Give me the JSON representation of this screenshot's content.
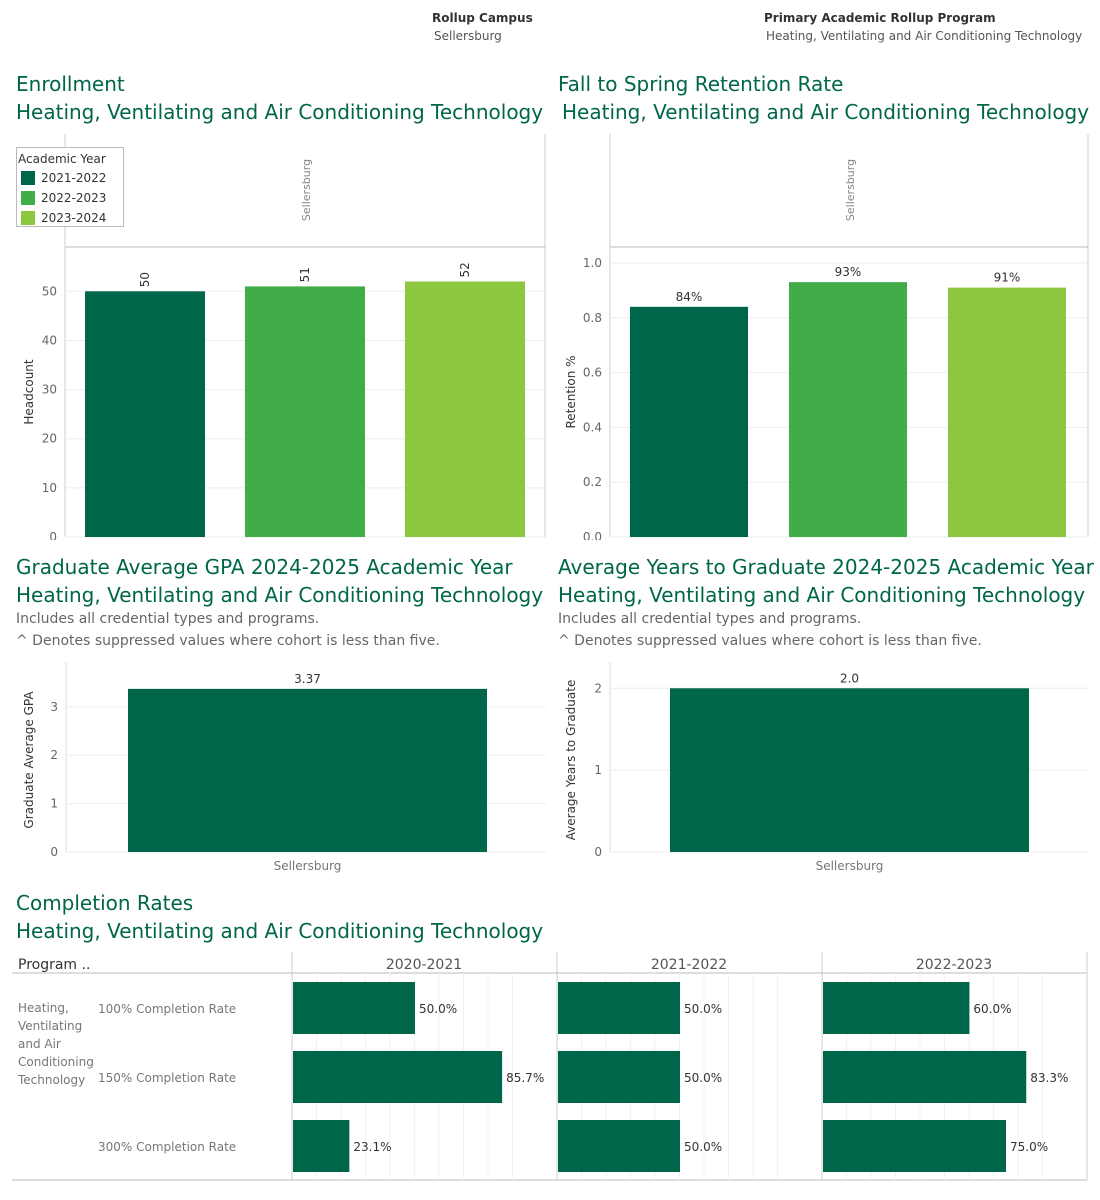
{
  "filters": {
    "campus_label": "Rollup Campus",
    "campus_value": "Sellersburg",
    "program_label": "Primary Academic Rollup Program",
    "program_value": "Heating, Ventilating and Air Conditioning Technology"
  },
  "colors": {
    "y1": "#00664a",
    "y2": "#40ad48",
    "y3": "#8dc63f",
    "title": "#00664a"
  },
  "enrollment": {
    "title": "Enrollment",
    "subtitle": "Heating, Ventilating and Air Conditioning Technology",
    "legend_title": "Academic Year",
    "legend": [
      "2021-2022",
      "2022-2023",
      "2023-2024"
    ],
    "panel_label": "Sellersburg"
  },
  "retention": {
    "title": "Fall to Spring Retention Rate",
    "subtitle": "Heating, Ventilating and Air Conditioning Technology",
    "panel_label": "Sellersburg"
  },
  "gpa": {
    "title": "Graduate Average GPA 2024-2025 Academic Year",
    "subtitle": "Heating, Ventilating and Air Conditioning Technology",
    "note1": "Includes all credential types and programs.",
    "note2": "^ Denotes suppressed values where cohort is less than five."
  },
  "years": {
    "title": "Average Years to Graduate 2024-2025 Academic Year",
    "subtitle": "Heating, Ventilating and Air Conditioning Technology",
    "note1": "Includes all credential types and programs.",
    "note2": "^ Denotes suppressed values where cohort is less than five."
  },
  "completion": {
    "title": "Completion Rates",
    "subtitle": "Heating, Ventilating and Air Conditioning Technology",
    "row_header": "Program ..",
    "program_name": [
      "Heating,",
      "Ventilating",
      "and Air",
      "Conditioning",
      "Technology"
    ]
  },
  "chart_data": [
    {
      "type": "bar",
      "id": "enrollment",
      "categories": [
        "2021-2022",
        "2022-2023",
        "2023-2024"
      ],
      "values": [
        50,
        51,
        52
      ],
      "labels": [
        "50",
        "51",
        "52"
      ],
      "ylabel": "Headcount",
      "ylim": [
        0,
        58
      ],
      "yticks": [
        0,
        10,
        20,
        30,
        40,
        50
      ],
      "grid": true,
      "legend_position": "top-left"
    },
    {
      "type": "bar",
      "id": "retention",
      "categories": [
        "2021-2022",
        "2022-2023",
        "2023-2024"
      ],
      "values": [
        0.84,
        0.93,
        0.91
      ],
      "labels": [
        "84%",
        "93%",
        "91%"
      ],
      "ylabel": "Retention %",
      "ylim": [
        0,
        1.04
      ],
      "yticks": [
        "0.0",
        "0.2",
        "0.4",
        "0.6",
        "0.8",
        "1.0"
      ],
      "grid": true
    },
    {
      "type": "bar",
      "id": "gpa",
      "categories": [
        "Sellersburg"
      ],
      "values": [
        3.37
      ],
      "labels": [
        "3.37"
      ],
      "ylabel": "Graduate Average GPA",
      "ylim": [
        0,
        3.45
      ],
      "yticks": [
        0,
        1,
        2,
        3
      ],
      "grid": true
    },
    {
      "type": "bar",
      "id": "years",
      "categories": [
        "Sellersburg"
      ],
      "values": [
        2.0
      ],
      "labels": [
        "2.0"
      ],
      "ylabel": "Average Years to Graduate",
      "ylim": [
        0,
        2.04
      ],
      "yticks": [
        0,
        1,
        2
      ],
      "grid": true
    },
    {
      "type": "bar",
      "id": "completion",
      "orientation": "horizontal",
      "columns": [
        "2020-2021",
        "2021-2022",
        "2022-2023"
      ],
      "rows": [
        "100% Completion Rate",
        "150% Completion Rate",
        "300% Completion Rate"
      ],
      "values": [
        [
          50.0,
          85.7,
          23.1
        ],
        [
          50.0,
          50.0,
          50.0
        ],
        [
          60.0,
          83.3,
          75.0
        ]
      ],
      "labels": [
        [
          "50.0%",
          "85.7%",
          "23.1%"
        ],
        [
          "50.0%",
          "50.0%",
          "50.0%"
        ],
        [
          "60.0%",
          "83.3%",
          "75.0%"
        ]
      ],
      "xlim": [
        0,
        100
      ],
      "grid": true
    }
  ]
}
